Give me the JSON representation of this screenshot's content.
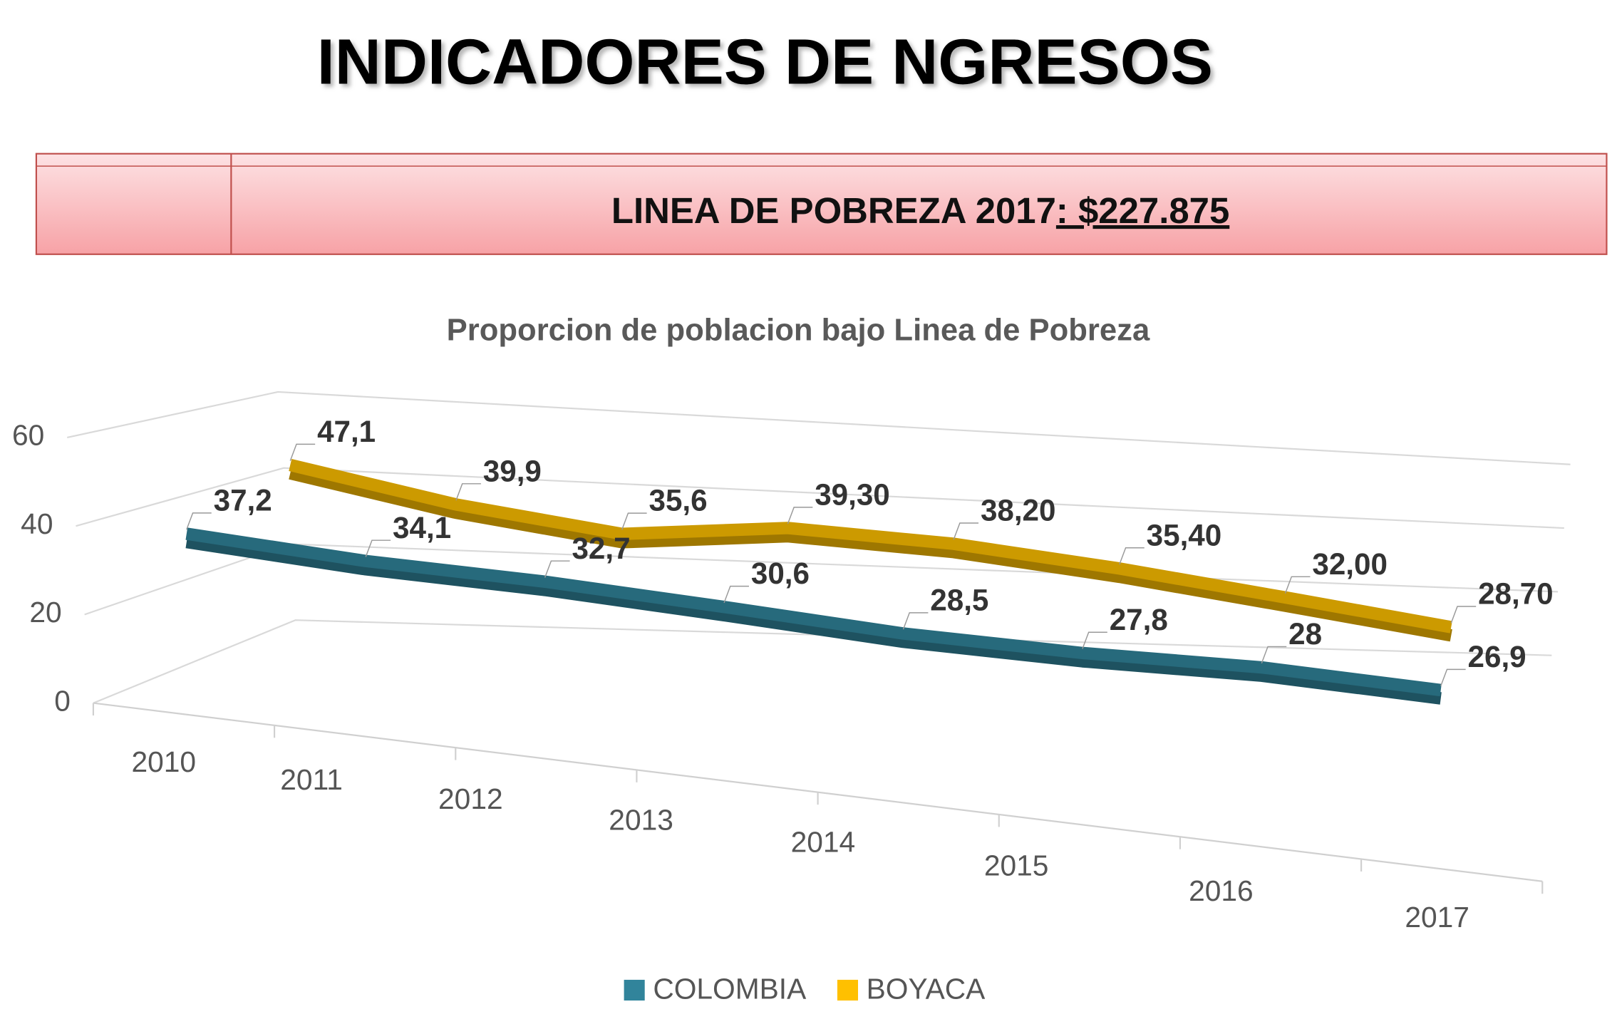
{
  "header": {
    "title": "INDICADORES DE NGRESOS"
  },
  "banner": {
    "label": "LINEA DE POBREZA 2017",
    "value": ": $227.875"
  },
  "chart_data": {
    "type": "line",
    "title": "Proporcion de poblacion bajo Linea de Pobreza",
    "categories": [
      "2010",
      "2011",
      "2012",
      "2013",
      "2014",
      "2015",
      "2016",
      "2017"
    ],
    "series": [
      {
        "name": "COLOMBIA",
        "color": "#31849b",
        "values": [
          37.2,
          34.1,
          32.7,
          30.6,
          28.5,
          27.8,
          28,
          26.9
        ],
        "value_labels": [
          "37,2",
          "34,1",
          "32,7",
          "30,6",
          "28,5",
          "27,8",
          "28",
          "26,9"
        ]
      },
      {
        "name": "BOYACA",
        "color": "#ffc000",
        "values": [
          47.1,
          39.9,
          35.6,
          39.3,
          38.2,
          35.4,
          32.0,
          28.7
        ],
        "value_labels": [
          "47,1",
          "39,9",
          "35,6",
          "39,30",
          "38,20",
          "35,40",
          "32,00",
          "28,70"
        ]
      }
    ],
    "ylim": [
      0,
      60
    ],
    "yticks": [
      0,
      20,
      40,
      60
    ],
    "grid": true,
    "legend": "bottom"
  }
}
